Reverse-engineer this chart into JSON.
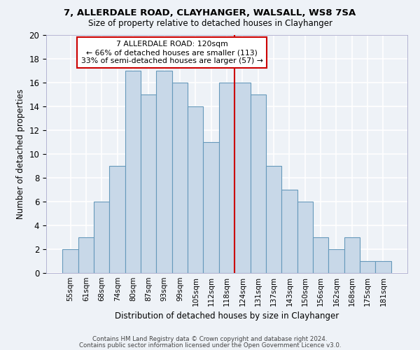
{
  "title1": "7, ALLERDALE ROAD, CLAYHANGER, WALSALL, WS8 7SA",
  "title2": "Size of property relative to detached houses in Clayhanger",
  "xlabel": "Distribution of detached houses by size in Clayhanger",
  "ylabel": "Number of detached properties",
  "categories": [
    "55sqm",
    "61sqm",
    "68sqm",
    "74sqm",
    "80sqm",
    "87sqm",
    "93sqm",
    "99sqm",
    "105sqm",
    "112sqm",
    "118sqm",
    "124sqm",
    "131sqm",
    "137sqm",
    "143sqm",
    "150sqm",
    "156sqm",
    "162sqm",
    "168sqm",
    "175sqm",
    "181sqm"
  ],
  "values": [
    2,
    3,
    6,
    9,
    17,
    15,
    17,
    16,
    14,
    11,
    16,
    16,
    15,
    9,
    7,
    6,
    3,
    2,
    3,
    1,
    1
  ],
  "bar_color": "#c8d8e8",
  "bar_edge_color": "#6699bb",
  "vline_x": 10.5,
  "vline_color": "#cc0000",
  "annotation_title": "7 ALLERDALE ROAD: 120sqm",
  "annotation_line1": "← 66% of detached houses are smaller (113)",
  "annotation_line2": "33% of semi-detached houses are larger (57) →",
  "annotation_box_color": "#cc0000",
  "ylim": [
    0,
    20
  ],
  "yticks": [
    0,
    2,
    4,
    6,
    8,
    10,
    12,
    14,
    16,
    18,
    20
  ],
  "footer1": "Contains HM Land Registry data © Crown copyright and database right 2024.",
  "footer2": "Contains public sector information licensed under the Open Government Licence v3.0.",
  "background_color": "#eef2f7",
  "grid_color": "#ffffff"
}
